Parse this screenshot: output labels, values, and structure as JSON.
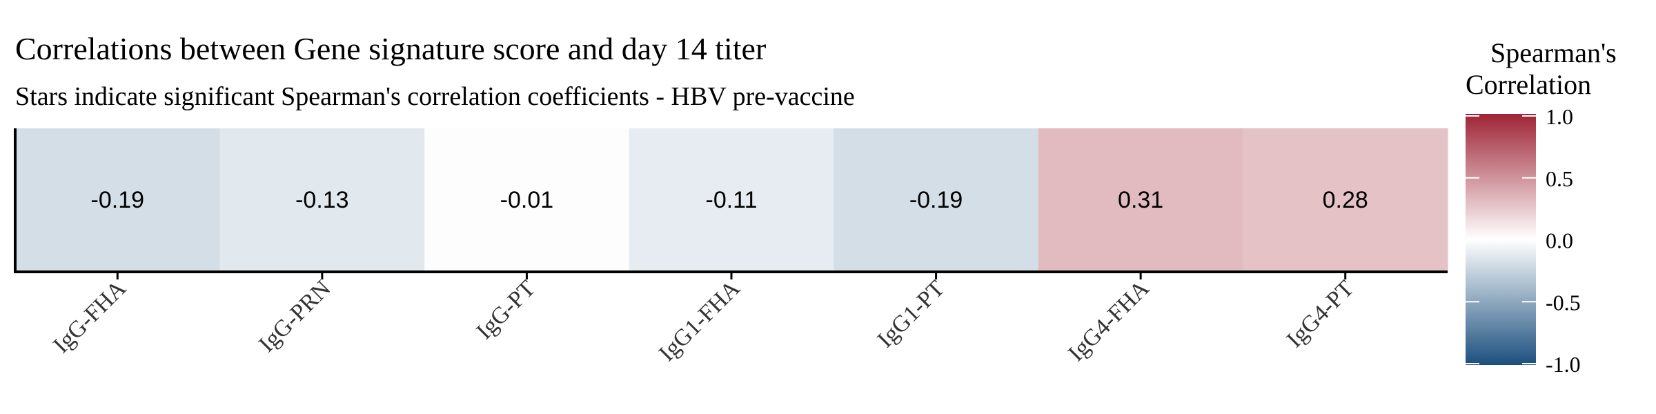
{
  "chart_data": {
    "type": "heatmap",
    "title": "Correlations between Gene signature score and day 14 titer",
    "subtitle": "Stars indicate significant Spearman's correlation coefficients - HBV pre-vaccine",
    "xlabel": "",
    "ylabel": "",
    "categories": [
      "IgG-FHA",
      "IgG-PRN",
      "IgG-PT",
      "IgG1-FHA",
      "IgG1-PT",
      "IgG4-FHA",
      "IgG4-PT"
    ],
    "values": [
      -0.19,
      -0.13,
      -0.01,
      -0.11,
      -0.19,
      0.31,
      0.28
    ],
    "value_labels": [
      "-0.19",
      "-0.13",
      "-0.01",
      "-0.11",
      "-0.19",
      "0.31",
      "0.28"
    ],
    "legend": {
      "title_lines": [
        "Spearman's",
        "Correlation"
      ],
      "placement": "right",
      "ticks": [
        1.0,
        0.5,
        0.0,
        -0.5,
        -1.0
      ],
      "tick_labels": [
        "1.0",
        "0.5",
        "0.0",
        "-0.5",
        "-1.0"
      ],
      "range": [
        -1,
        1
      ]
    },
    "colors": {
      "low": "#1b4f7e",
      "mid": "#ffffff",
      "high": "#9e2435",
      "axis": "#000000",
      "text": "#000000"
    }
  }
}
